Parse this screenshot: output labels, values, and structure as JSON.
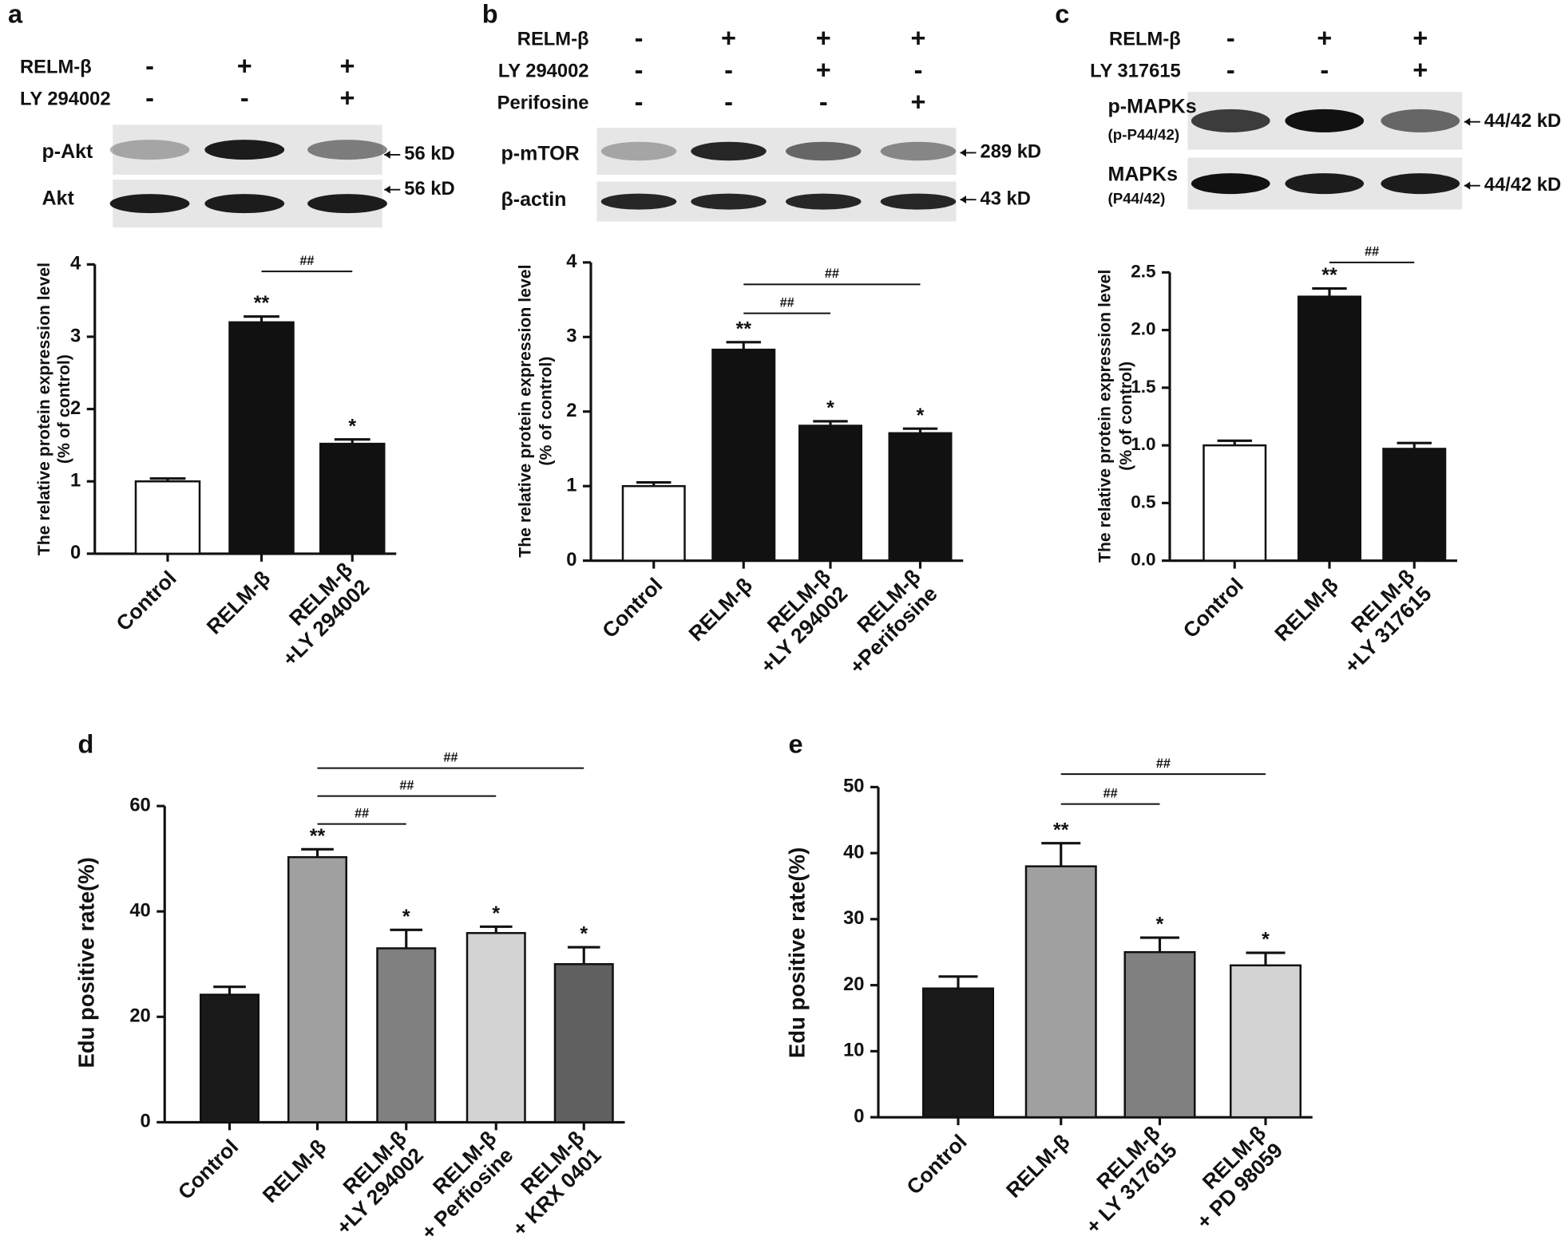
{
  "chart_data": [
    {
      "type": "bar",
      "panel": "a",
      "ylabel": [
        "The relative protein expression level",
        "(% of control)"
      ],
      "categories": [
        [
          "Control"
        ],
        [
          "RELM-β"
        ],
        [
          "RELM-β",
          "+LY 294002"
        ]
      ],
      "values": [
        1.0,
        3.2,
        1.52
      ],
      "errors": [
        0.04,
        0.08,
        0.06
      ],
      "colors": [
        "#ffffff",
        "#111111",
        "#111111"
      ],
      "significance": [
        null,
        "**",
        "*"
      ],
      "comparisons": [
        {
          "from": 1,
          "to": 2,
          "label": "##"
        }
      ],
      "ylim": [
        0,
        4
      ],
      "yticks": [
        0,
        1,
        2,
        3,
        4
      ]
    },
    {
      "type": "bar",
      "panel": "b",
      "ylabel": [
        "The relative protein expression level",
        "(% of control)"
      ],
      "categories": [
        [
          "Control"
        ],
        [
          "RELM-β"
        ],
        [
          "RELM-β",
          "+LY 294002"
        ],
        [
          "RELM-β",
          "+Perifosine"
        ]
      ],
      "values": [
        1.0,
        2.83,
        1.81,
        1.71
      ],
      "errors": [
        0.05,
        0.1,
        0.06,
        0.06
      ],
      "colors": [
        "#ffffff",
        "#111111",
        "#111111",
        "#111111"
      ],
      "significance": [
        null,
        "**",
        "*",
        "*"
      ],
      "comparisons": [
        {
          "from": 1,
          "to": 2,
          "label": "##"
        },
        {
          "from": 1,
          "to": 3,
          "label": "##"
        }
      ],
      "ylim": [
        0,
        4
      ],
      "yticks": [
        0,
        1,
        2,
        3,
        4
      ]
    },
    {
      "type": "bar",
      "panel": "c",
      "ylabel": [
        "The relative protein expression level",
        "(% of control)"
      ],
      "categories": [
        [
          "Control"
        ],
        [
          "RELM-β"
        ],
        [
          "RELM-β",
          "+LY 317615"
        ]
      ],
      "values": [
        1.0,
        2.29,
        0.97
      ],
      "errors": [
        0.04,
        0.07,
        0.05
      ],
      "colors": [
        "#ffffff",
        "#111111",
        "#111111"
      ],
      "significance": [
        null,
        "**",
        null
      ],
      "comparisons": [
        {
          "from": 1,
          "to": 2,
          "label": "##"
        }
      ],
      "ylim": [
        0,
        2.5
      ],
      "yticks": [
        {
          "value": 0,
          "label": "0.0"
        },
        {
          "value": 0.5,
          "label": "0.5"
        },
        {
          "value": 1,
          "label": "1.0"
        },
        {
          "value": 1.5,
          "label": "1.5"
        },
        {
          "value": 2,
          "label": "2.0"
        },
        {
          "value": 2.5,
          "label": "2.5"
        }
      ]
    },
    {
      "type": "bar",
      "panel": "d",
      "ylabel": [
        "Edu positive rate(%)"
      ],
      "categories": [
        [
          "Control"
        ],
        [
          "RELM-β"
        ],
        [
          "RELM-β",
          "+LY 294002"
        ],
        [
          "RELM-β",
          "+ Perfiosine"
        ],
        [
          "RELM-β",
          "+ KRX 0401"
        ]
      ],
      "values": [
        24.2,
        50.3,
        33,
        35.9,
        30
      ],
      "errors": [
        1.5,
        1.5,
        3.5,
        1.2,
        3.2
      ],
      "colors": [
        "#1a1a1a",
        "#a0a0a0",
        "#808080",
        "#d3d3d3",
        "#606060"
      ],
      "significance": [
        null,
        "**",
        "*",
        "*",
        "*"
      ],
      "comparisons": [
        {
          "from": 1,
          "to": 2,
          "label": "##"
        },
        {
          "from": 1,
          "to": 3,
          "label": "##"
        },
        {
          "from": 1,
          "to": 4,
          "label": "##"
        }
      ],
      "ylim": [
        0,
        60
      ],
      "yticks": [
        0,
        20,
        40,
        60
      ]
    },
    {
      "type": "bar",
      "panel": "e",
      "ylabel": [
        "Edu positive rate(%)"
      ],
      "categories": [
        [
          "Control"
        ],
        [
          "RELM-β"
        ],
        [
          "RELM-β",
          "+ LY 317615"
        ],
        [
          "RELM-β",
          "+ PD 98059"
        ]
      ],
      "values": [
        19.5,
        38,
        25,
        23
      ],
      "errors": [
        1.8,
        3.5,
        2.2,
        1.9
      ],
      "colors": [
        "#1a1a1a",
        "#a0a0a0",
        "#808080",
        "#d3d3d3"
      ],
      "significance": [
        null,
        "**",
        "*",
        "*"
      ],
      "comparisons": [
        {
          "from": 1,
          "to": 2,
          "label": "##"
        },
        {
          "from": 1,
          "to": 3,
          "label": "##"
        }
      ],
      "ylim": [
        0,
        50
      ],
      "yticks": [
        0,
        10,
        20,
        30,
        40,
        50
      ]
    }
  ],
  "blots": [
    {
      "conditions": [
        {
          "label": "RELM-β",
          "signs": [
            "-",
            "+",
            "+"
          ]
        },
        {
          "label": "LY 294002",
          "signs": [
            "-",
            "-",
            "+"
          ]
        }
      ],
      "bands": [
        {
          "label": [
            "p-Akt"
          ],
          "size": "56 kD"
        },
        {
          "label": [
            "Akt"
          ],
          "size": "56 kD"
        }
      ]
    },
    {
      "conditions": [
        {
          "label": "RELM-β",
          "signs": [
            "-",
            "+",
            "+",
            "+"
          ]
        },
        {
          "label": "LY 294002",
          "signs": [
            "-",
            "-",
            "+",
            "-"
          ]
        },
        {
          "label": "Perifosine",
          "signs": [
            "-",
            "-",
            "-",
            "+"
          ]
        }
      ],
      "bands": [
        {
          "label": [
            "p-mTOR"
          ],
          "size": "289 kD"
        },
        {
          "label": [
            "β-actin"
          ],
          "size": "43 kD"
        }
      ]
    },
    {
      "conditions": [
        {
          "label": "RELM-β",
          "signs": [
            "-",
            "+",
            "+"
          ]
        },
        {
          "label": "LY 317615",
          "signs": [
            "-",
            "-",
            "+"
          ]
        }
      ],
      "bands": [
        {
          "label": [
            "p-MAPKs",
            "(p-P44/42)"
          ],
          "size": "44/42 kD"
        },
        {
          "label": [
            "MAPKs",
            "(P44/42)"
          ],
          "size": "44/42 kD"
        }
      ]
    }
  ]
}
